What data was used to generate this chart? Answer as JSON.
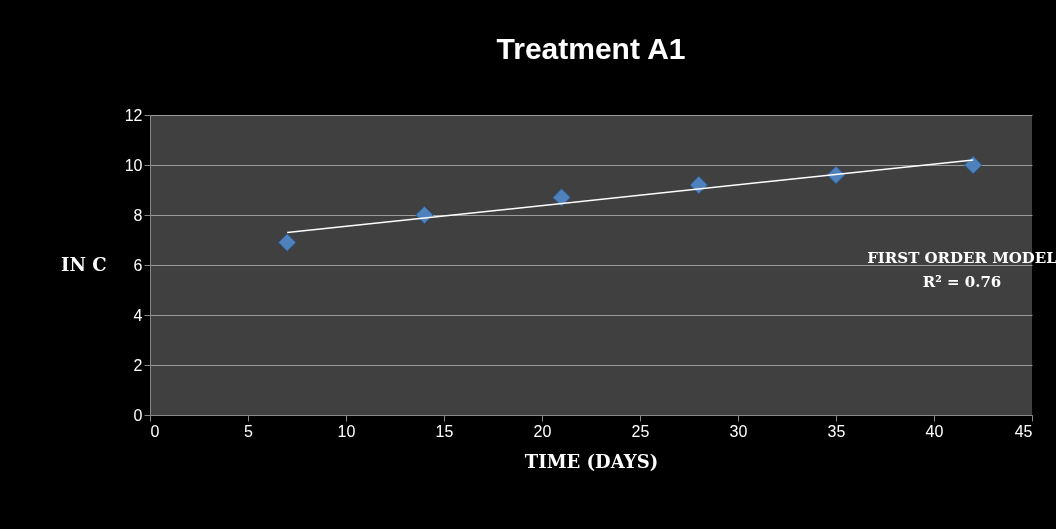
{
  "chart_data": {
    "type": "scatter",
    "title": "Treatment  A1",
    "xlabel": "TIME (DAYS)",
    "ylabel": "IN C",
    "xlim": [
      0,
      45
    ],
    "xticks": [
      0,
      5,
      10,
      15,
      20,
      25,
      30,
      35,
      40,
      45
    ],
    "ylim": [
      0,
      12
    ],
    "yticks": [
      0,
      2,
      4,
      6,
      8,
      10,
      12
    ],
    "grid": "y",
    "marker": "diamond",
    "series": [
      {
        "color": "#4f81bd",
        "x": [
          7,
          14,
          21,
          28,
          35,
          42
        ],
        "values": [
          6.9,
          8.0,
          8.7,
          9.2,
          9.6,
          10.0
        ]
      },
      {
        "type": "line",
        "marker": "none",
        "color": "#ffffff",
        "x": [
          7,
          42
        ],
        "values": [
          7.3,
          10.2
        ]
      }
    ],
    "annotations": [
      "FIRST ORDER MODEL",
      "R² = 0.76"
    ]
  }
}
